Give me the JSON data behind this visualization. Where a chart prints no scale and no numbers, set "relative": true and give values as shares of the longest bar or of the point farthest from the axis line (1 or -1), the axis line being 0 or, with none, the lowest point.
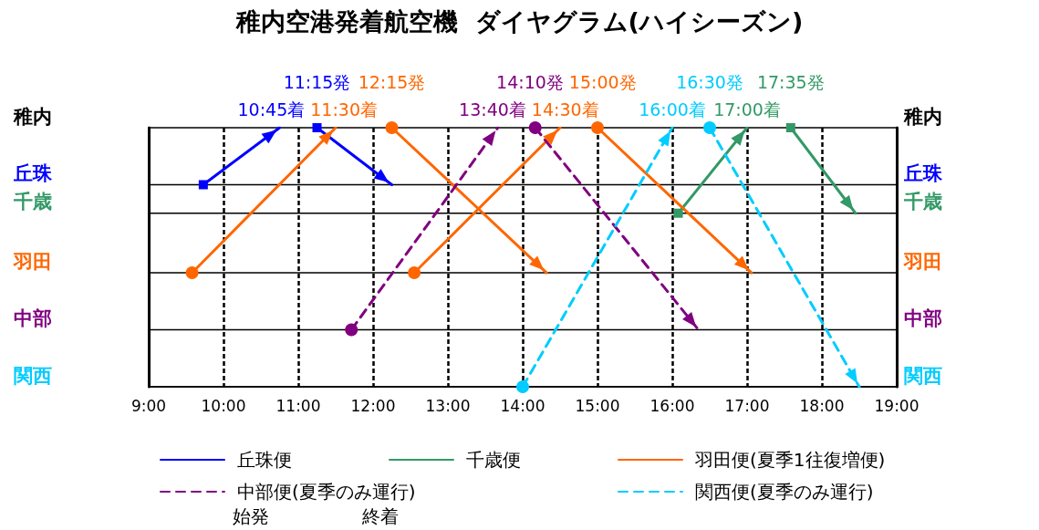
{
  "chart_data": {
    "type": "line",
    "title": "稚内空港発着航空機  ダイヤグラム(ハイシーズン)",
    "xlim": [
      9,
      19
    ],
    "xticks": [
      {
        "value": 9,
        "label": "9:00"
      },
      {
        "value": 10,
        "label": "10:00"
      },
      {
        "value": 11,
        "label": "11:00"
      },
      {
        "value": 12,
        "label": "12:00"
      },
      {
        "value": 13,
        "label": "13:00"
      },
      {
        "value": 14,
        "label": "14:00"
      },
      {
        "value": 15,
        "label": "15:00"
      },
      {
        "value": 16,
        "label": "16:00"
      },
      {
        "value": 17,
        "label": "17:00"
      },
      {
        "value": 18,
        "label": "18:00"
      },
      {
        "value": 19,
        "label": "19:00"
      }
    ],
    "relative": true,
    "grid": "x",
    "legend": "bottom",
    "ref_lines": [
      {
        "axis": "y",
        "value": 1,
        "label": "稚内"
      },
      {
        "axis": "y",
        "value": 0.78,
        "label": "丘珠"
      },
      {
        "axis": "y",
        "value": 0.67,
        "label": "千歳"
      },
      {
        "axis": "y",
        "value": 0.44,
        "label": "羽田"
      },
      {
        "axis": "y",
        "value": 0.22,
        "label": "中部"
      },
      {
        "axis": "y",
        "value": 0,
        "label": "関西"
      }
    ],
    "series": [
      {
        "name": "丘珠便",
        "color": "#0000ff",
        "marker": "square",
        "line_style": "solid",
        "x": [
          9.73,
          10.75,
          11.0,
          11.25,
          12.25
        ],
        "values": [
          0.78,
          1,
          null,
          1,
          0.78
        ]
      },
      {
        "name": "千歳便",
        "color": "#339966",
        "marker": "square",
        "line_style": "solid",
        "x": [
          16.08,
          17.0,
          17.3,
          17.583,
          18.45
        ],
        "values": [
          0.67,
          1,
          null,
          1,
          0.67
        ]
      },
      {
        "name": "羽田便(夏季1往復増便)",
        "color": "#ff6600",
        "marker": "circle",
        "line_style": "solid",
        "x": [
          9.58,
          11.5,
          11.9,
          12.25,
          14.32,
          13.4,
          12.55,
          14.5,
          14.75,
          15.0,
          17.06
        ],
        "values": [
          0.44,
          1,
          null,
          1,
          0.44,
          null,
          0.44,
          1,
          null,
          1,
          0.44
        ]
      },
      {
        "name": "中部便(夏季のみ運行)",
        "color": "#800080",
        "marker": "circle",
        "line_style": "dashed",
        "x": [
          11.71,
          13.667,
          13.9,
          14.167,
          16.35
        ],
        "values": [
          0.22,
          1,
          null,
          1,
          0.22
        ]
      },
      {
        "name": "関西便(夏季のみ運行)",
        "color": "#00ccff",
        "marker": "circle",
        "line_style": "dashed",
        "x": [
          14.0,
          16.0,
          16.25,
          16.5,
          18.5
        ],
        "values": [
          0,
          1,
          null,
          1,
          0
        ]
      }
    ],
    "annotations": [
      {
        "text": "11:15発",
        "x": 11.25,
        "y": 1
      },
      {
        "text": "12:15発",
        "x": 12.25,
        "y": 1
      },
      {
        "text": "14:10発",
        "x": 14.167,
        "y": 1
      },
      {
        "text": "15:00発",
        "x": 15.0,
        "y": 1
      },
      {
        "text": "16:30発",
        "x": 16.5,
        "y": 1
      },
      {
        "text": "17:35発",
        "x": 17.583,
        "y": 1
      },
      {
        "text": "10:45着",
        "x": 10.75,
        "y": 1
      },
      {
        "text": "11:30着",
        "x": 11.5,
        "y": 1
      },
      {
        "text": "13:40着",
        "x": 13.667,
        "y": 1
      },
      {
        "text": "14:30着",
        "x": 14.5,
        "y": 1
      },
      {
        "text": "16:00着",
        "x": 16.0,
        "y": 1
      },
      {
        "text": "17:00着",
        "x": 17.0,
        "y": 1
      },
      "始発",
      "終着"
    ]
  }
}
